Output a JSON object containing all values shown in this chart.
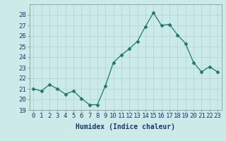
{
  "x": [
    0,
    1,
    2,
    3,
    4,
    5,
    6,
    7,
    8,
    9,
    10,
    11,
    12,
    13,
    14,
    15,
    16,
    17,
    18,
    19,
    20,
    21,
    22,
    23
  ],
  "y": [
    21.0,
    20.8,
    21.4,
    21.0,
    20.5,
    20.8,
    20.1,
    19.5,
    19.5,
    21.3,
    23.5,
    24.2,
    24.8,
    25.5,
    26.9,
    28.2,
    27.0,
    27.1,
    26.1,
    25.3,
    23.5,
    22.6,
    23.1,
    22.6
  ],
  "line_color": "#1a7a6e",
  "marker": "D",
  "marker_size": 2.5,
  "bg_color": "#cceae8",
  "grid_color": "#b0d4d0",
  "xlabel": "Humidex (Indice chaleur)",
  "ylim": [
    19,
    29
  ],
  "xlim": [
    -0.5,
    23.5
  ],
  "yticks": [
    19,
    20,
    21,
    22,
    23,
    24,
    25,
    26,
    27,
    28
  ],
  "xticks": [
    0,
    1,
    2,
    3,
    4,
    5,
    6,
    7,
    8,
    9,
    10,
    11,
    12,
    13,
    14,
    15,
    16,
    17,
    18,
    19,
    20,
    21,
    22,
    23
  ],
  "label_fontsize": 7,
  "tick_fontsize": 6.5,
  "spine_color": "#888888",
  "text_color": "#1a3a6e"
}
